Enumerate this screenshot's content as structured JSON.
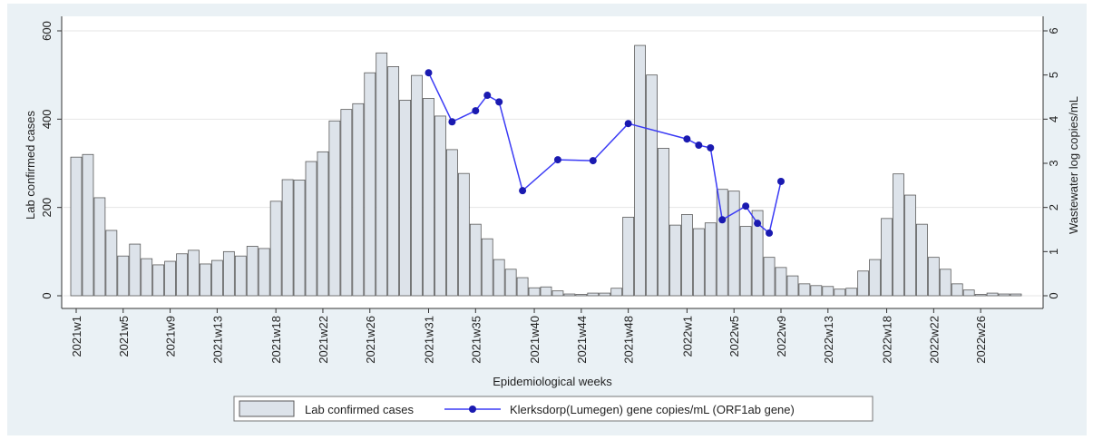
{
  "chart_data": {
    "type": "bar",
    "xlabel": "Epidemiological weeks",
    "ylabel": "Lab confirmed cases",
    "y2label": "Wastewater log copies/mL",
    "categories": [
      "2021w1",
      null,
      null,
      null,
      "2021w5",
      null,
      null,
      null,
      "2021w9",
      null,
      null,
      null,
      "2021w13",
      null,
      null,
      null,
      null,
      "2021w18",
      null,
      null,
      null,
      "2021w22",
      null,
      null,
      null,
      "2021w26",
      null,
      null,
      null,
      null,
      "2021w31",
      null,
      null,
      null,
      "2021w35",
      null,
      null,
      null,
      null,
      "2021w40",
      null,
      null,
      null,
      "2021w44",
      null,
      null,
      null,
      "2021w48",
      null,
      null,
      null,
      null,
      "2022w1",
      null,
      null,
      null,
      "2022w5",
      null,
      null,
      null,
      "2022w9",
      null,
      null,
      null,
      "2022w13",
      null,
      null,
      null,
      null,
      "2022w18",
      null,
      null,
      null,
      "2022w22",
      null,
      null,
      null,
      "2022w26",
      null,
      null,
      null
    ],
    "series": [
      {
        "name": "Lab confirmed cases",
        "type": "bar",
        "color": "#dde3ea",
        "edge": "#5a5a5a",
        "values": [
          314,
          320,
          222,
          148,
          90,
          117,
          84,
          70,
          78,
          95,
          103,
          72,
          80,
          100,
          90,
          112,
          107,
          214,
          263,
          262,
          304,
          326,
          396,
          422,
          435,
          505,
          550,
          519,
          443,
          499,
          447,
          407,
          331,
          277,
          162,
          129,
          82,
          60,
          41,
          18,
          20,
          11,
          4,
          3,
          6,
          6,
          17,
          178,
          567,
          500,
          334,
          160,
          184,
          152,
          165,
          241,
          237,
          157,
          193,
          87,
          64,
          45,
          27,
          23,
          21,
          15,
          17,
          56,
          82,
          175,
          276,
          228,
          162,
          87,
          60,
          27,
          13,
          3,
          6,
          4,
          4
        ]
      },
      {
        "name": "Klerksdorp(Lumegen) gene copies/mL (ORF1ab gene)",
        "type": "line",
        "axis": "y2",
        "color": "#3b3bf5",
        "marker_color": "#1a1ab0",
        "x": [
          30,
          32,
          34,
          35,
          36,
          38,
          41,
          44,
          47,
          52,
          53,
          54,
          55,
          57,
          58,
          59,
          60
        ],
        "values": [
          5.05,
          3.94,
          4.19,
          4.54,
          4.39,
          2.38,
          3.08,
          3.06,
          3.9,
          3.55,
          3.41,
          3.35,
          1.72,
          2.03,
          1.64,
          1.42,
          2.59
        ]
      }
    ],
    "ylim": [
      0,
      600
    ],
    "yticks": [
      0,
      200,
      400,
      600
    ],
    "y2lim": [
      0,
      6
    ],
    "y2ticks": [
      0,
      1,
      2,
      3,
      4,
      5,
      6
    ],
    "grid": true
  }
}
